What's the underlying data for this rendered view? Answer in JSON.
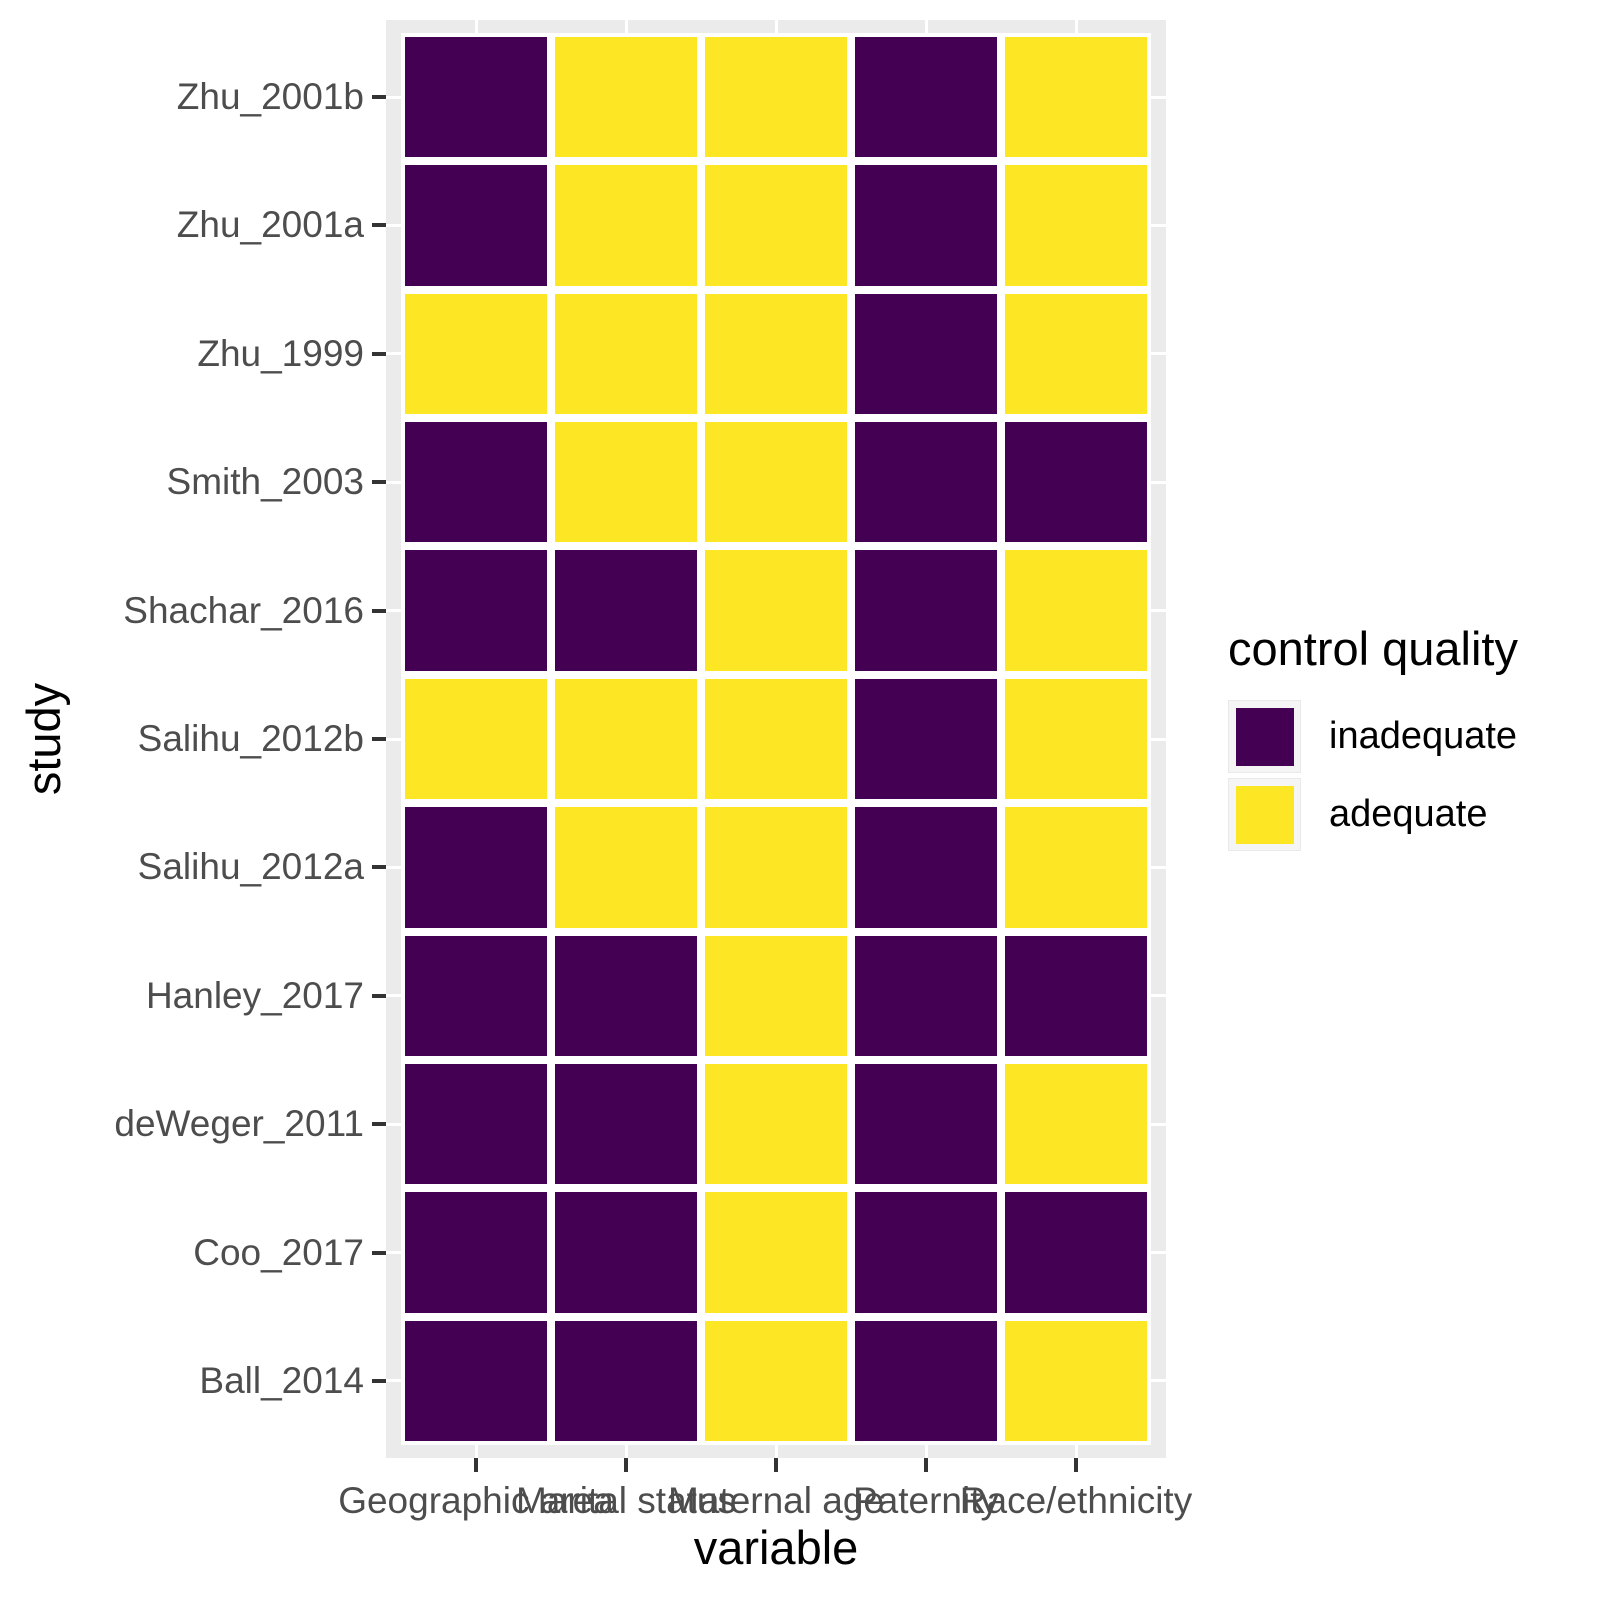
{
  "legend": {
    "title": "control quality",
    "items": [
      {
        "label": "inadequate",
        "color": "#440154"
      },
      {
        "label": "adequate",
        "color": "#FDE725"
      }
    ]
  },
  "colors": {
    "inadequate": "#440154",
    "adequate": "#FDE725",
    "panel_background": "#EBEBEB",
    "gridline": "#FFFFFF",
    "axis_text": "#4D4D4D",
    "tick": "#333333"
  },
  "chart_data": {
    "type": "heatmap",
    "xlabel": "variable",
    "ylabel": "study",
    "legend_title": "control quality",
    "legend_position": "right",
    "grid": "white major gridlines on grey panel",
    "x": [
      "Geographic area",
      "Marital status",
      "Maternal age",
      "Paternity",
      "Race/ethnicity"
    ],
    "y_top_to_bottom": [
      "Zhu_2001b",
      "Zhu_2001a",
      "Zhu_1999",
      "Smith_2003",
      "Shachar_2016",
      "Salihu_2012b",
      "Salihu_2012a",
      "Hanley_2017",
      "deWeger_2011",
      "Coo_2017",
      "Ball_2014"
    ],
    "values": [
      [
        "inadequate",
        "adequate",
        "adequate",
        "inadequate",
        "adequate"
      ],
      [
        "inadequate",
        "adequate",
        "adequate",
        "inadequate",
        "adequate"
      ],
      [
        "adequate",
        "adequate",
        "adequate",
        "inadequate",
        "adequate"
      ],
      [
        "inadequate",
        "adequate",
        "adequate",
        "inadequate",
        "inadequate"
      ],
      [
        "inadequate",
        "inadequate",
        "adequate",
        "inadequate",
        "adequate"
      ],
      [
        "adequate",
        "adequate",
        "adequate",
        "inadequate",
        "adequate"
      ],
      [
        "inadequate",
        "adequate",
        "adequate",
        "inadequate",
        "adequate"
      ],
      [
        "inadequate",
        "inadequate",
        "adequate",
        "inadequate",
        "inadequate"
      ],
      [
        "inadequate",
        "inadequate",
        "adequate",
        "inadequate",
        "adequate"
      ],
      [
        "inadequate",
        "inadequate",
        "adequate",
        "inadequate",
        "inadequate"
      ],
      [
        "inadequate",
        "inadequate",
        "adequate",
        "inadequate",
        "adequate"
      ]
    ]
  }
}
